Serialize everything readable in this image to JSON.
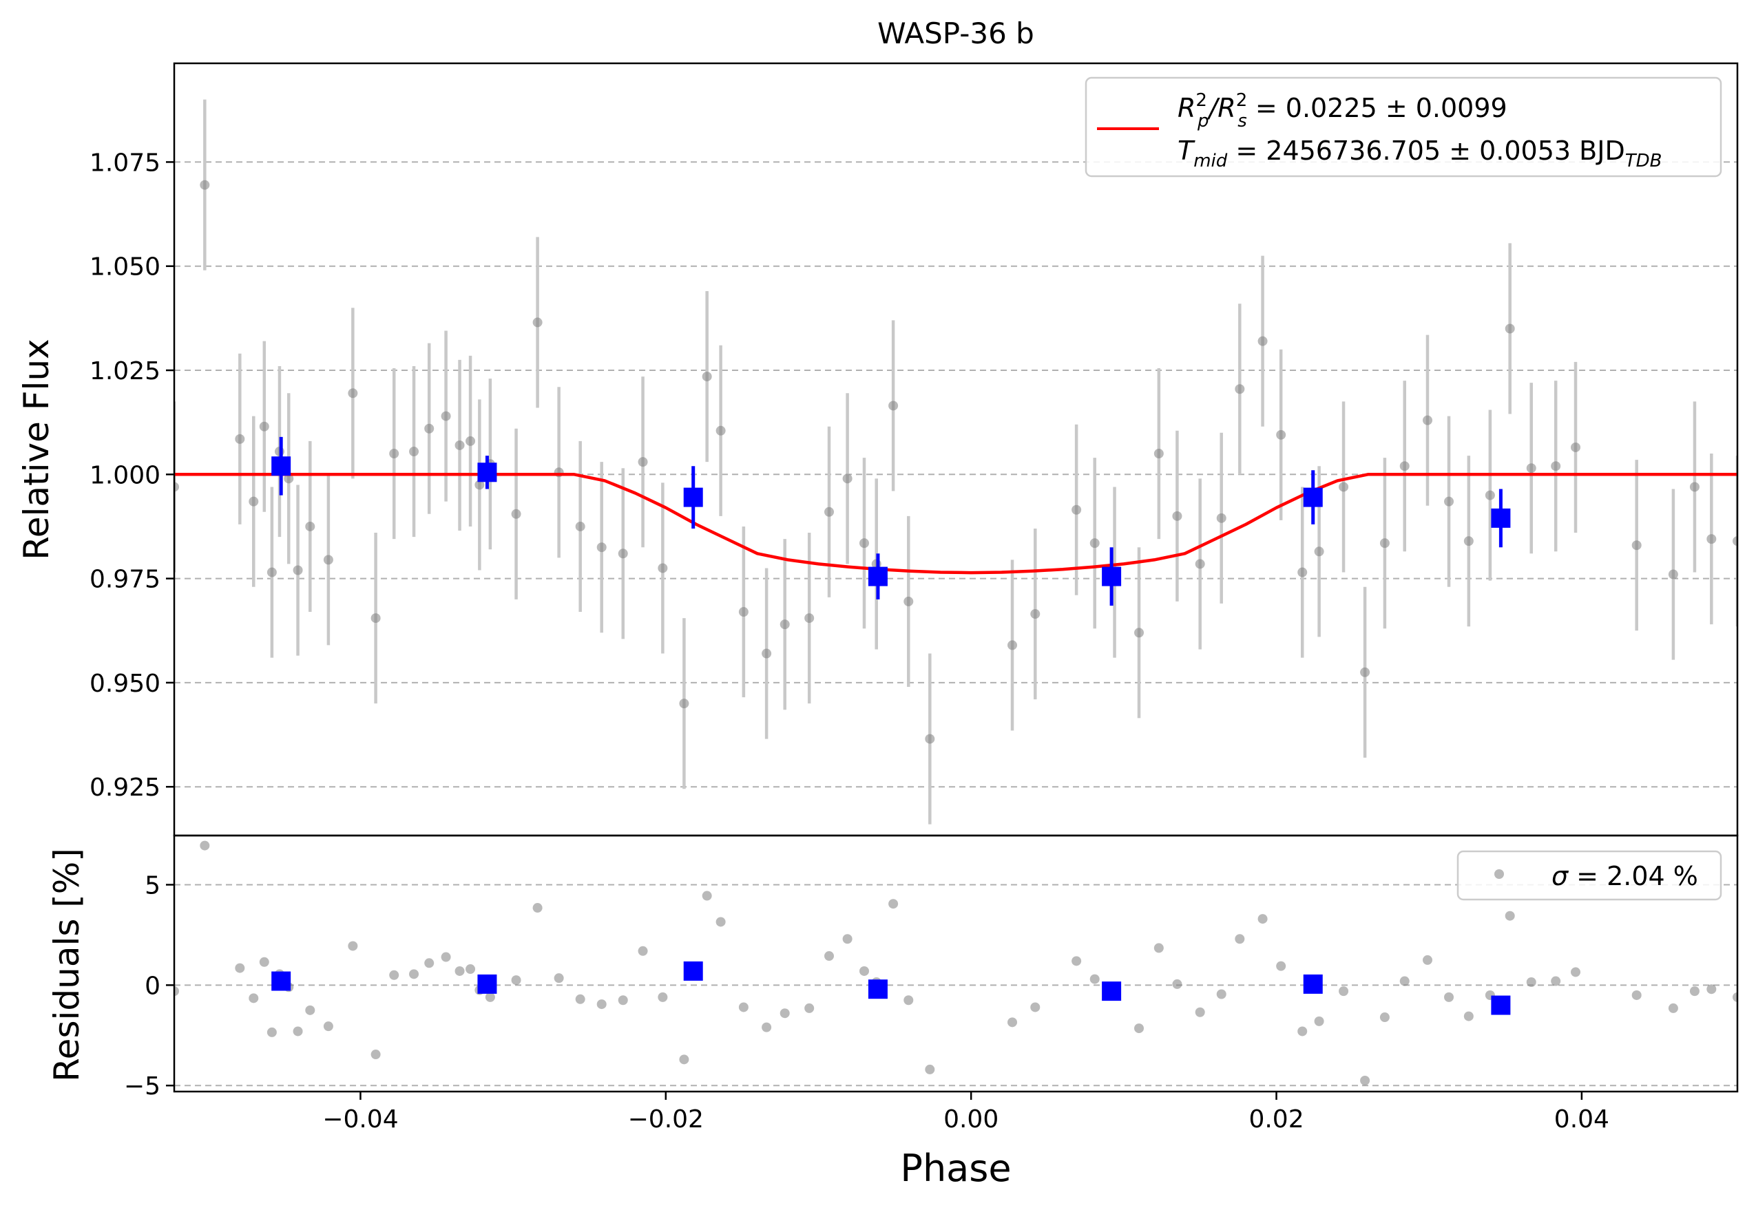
{
  "colors": {
    "model": "#ff0000",
    "binned": "#0000ff",
    "raw": "#808080",
    "errorbar": "#c8c8c8",
    "grid": "#b0b0b0",
    "axis": "#000000"
  },
  "chart_data": [
    {
      "type": "scatter",
      "panel": "lightcurve",
      "title": "WASP-36 b",
      "xlabel": "",
      "ylabel": "Relative Flux",
      "xlim": [
        -0.0522,
        0.0502
      ],
      "ylim": [
        0.9133,
        1.0987
      ],
      "yticks": [
        0.925,
        0.95,
        0.975,
        1.0,
        1.025,
        1.05,
        1.075
      ],
      "ytick_labels": [
        "0.925",
        "0.950",
        "0.975",
        "1.000",
        "1.025",
        "1.050",
        "1.075"
      ],
      "grid": "horizontal dashed",
      "legend": {
        "placement": "top-right",
        "line1_a": "R",
        "line1_sup1": "2",
        "line1_sub1": "p",
        "line1_b": "/R",
        "line1_sup2": "2",
        "line1_sub2": "s",
        "line1_c": " = 0.0225 ± 0.0099",
        "line2_a": "T",
        "line2_sub": "mid",
        "line2_b": " = 2456736.705 ± 0.0053 BJD",
        "line2_sub2": "TDB"
      },
      "raw_points": {
        "err": 0.0205,
        "x": [
          -0.0522,
          -0.0502,
          -0.0479,
          -0.047,
          -0.0463,
          -0.0458,
          -0.0453,
          -0.0447,
          -0.0441,
          -0.0433,
          -0.0421,
          -0.0405,
          -0.039,
          -0.0378,
          -0.0365,
          -0.0355,
          -0.0344,
          -0.0335,
          -0.0328,
          -0.0322,
          -0.0315,
          -0.0298,
          -0.0284,
          -0.027,
          -0.0256,
          -0.0242,
          -0.0228,
          -0.0215,
          -0.0202,
          -0.0188,
          -0.0173,
          -0.0164,
          -0.0149,
          -0.0134,
          -0.0122,
          -0.0106,
          -0.0093,
          -0.0081,
          -0.007,
          -0.0062,
          -0.0051,
          -0.0041,
          -0.0027,
          0.0027,
          0.0042,
          0.0069,
          0.0081,
          0.0094,
          0.011,
          0.0123,
          0.0135,
          0.015,
          0.0164,
          0.0176,
          0.0191,
          0.0203,
          0.0217,
          0.0228,
          0.0244,
          0.0258,
          0.0271,
          0.0284,
          0.0299,
          0.0313,
          0.0326,
          0.034,
          0.0353,
          0.0367,
          0.0383,
          0.0396,
          0.0436,
          0.046,
          0.0474,
          0.0485,
          0.0502
        ],
        "y": [
          0.997,
          1.0695,
          1.0085,
          0.9935,
          1.0115,
          0.9765,
          1.0055,
          0.999,
          0.977,
          0.9875,
          0.9795,
          1.0195,
          0.9655,
          1.005,
          1.0055,
          1.011,
          1.014,
          1.007,
          1.008,
          0.9975,
          1.0025,
          0.9905,
          1.0365,
          1.0005,
          0.9875,
          0.9825,
          0.981,
          1.003,
          0.9775,
          0.945,
          1.0235,
          1.0105,
          0.967,
          0.957,
          0.964,
          0.9655,
          0.991,
          0.999,
          0.9835,
          0.9785,
          1.0165,
          0.9695,
          0.9365,
          0.959,
          0.9665,
          0.9915,
          0.9835,
          0.9765,
          0.962,
          1.005,
          0.99,
          0.9785,
          0.9895,
          1.0205,
          1.032,
          1.0095,
          0.9765,
          0.9815,
          0.997,
          0.9525,
          0.9835,
          1.002,
          1.013,
          0.9935,
          0.984,
          0.995,
          1.035,
          1.0015,
          1.002,
          1.0065,
          0.983,
          0.976,
          0.997,
          0.9845,
          0.984
        ]
      },
      "binned_points": {
        "x": [
          -0.0452,
          -0.0317,
          -0.0182,
          -0.0061,
          0.0092,
          0.0224,
          0.0347
        ],
        "y": [
          1.002,
          1.0005,
          0.9945,
          0.9755,
          0.9755,
          0.9945,
          0.9895
        ],
        "err": [
          0.007,
          0.004,
          0.0075,
          0.0055,
          0.007,
          0.0065,
          0.007
        ]
      },
      "model": {
        "x": [
          -0.0522,
          -0.026,
          -0.024,
          -0.022,
          -0.02,
          -0.018,
          -0.016,
          -0.014,
          -0.012,
          -0.01,
          -0.008,
          -0.006,
          -0.004,
          -0.002,
          0.0,
          0.002,
          0.004,
          0.006,
          0.008,
          0.01,
          0.012,
          0.014,
          0.016,
          0.018,
          0.02,
          0.022,
          0.024,
          0.026,
          0.0502
        ],
        "y": [
          1.0,
          1.0,
          0.9985,
          0.9955,
          0.992,
          0.988,
          0.9845,
          0.981,
          0.9795,
          0.9785,
          0.9778,
          0.9772,
          0.9768,
          0.9765,
          0.9764,
          0.9765,
          0.9768,
          0.9772,
          0.9778,
          0.9785,
          0.9795,
          0.981,
          0.9845,
          0.988,
          0.992,
          0.9955,
          0.9985,
          1.0,
          1.0
        ]
      }
    },
    {
      "type": "scatter",
      "panel": "residuals",
      "xlabel": "Phase",
      "ylabel": "Residuals [%]",
      "xlim": [
        -0.0522,
        0.0502
      ],
      "ylim": [
        -5.3,
        7.45
      ],
      "yticks": [
        -5,
        0,
        5
      ],
      "ytick_labels": [
        "−5",
        "0",
        "5"
      ],
      "xticks": [
        -0.04,
        -0.02,
        0.0,
        0.02,
        0.04
      ],
      "xtick_labels": [
        "−0.04",
        "−0.02",
        "0.00",
        "0.02",
        "0.04"
      ],
      "grid": "horizontal dashed",
      "legend": {
        "placement": "top-right",
        "sigma_symbol": "σ",
        "label": " = 2.04 %"
      },
      "raw_points": {
        "x": [
          -0.0522,
          -0.0502,
          -0.0479,
          -0.047,
          -0.0463,
          -0.0458,
          -0.0453,
          -0.0447,
          -0.0441,
          -0.0433,
          -0.0421,
          -0.0405,
          -0.039,
          -0.0378,
          -0.0365,
          -0.0355,
          -0.0344,
          -0.0335,
          -0.0328,
          -0.0322,
          -0.0315,
          -0.0298,
          -0.0284,
          -0.027,
          -0.0256,
          -0.0242,
          -0.0228,
          -0.0215,
          -0.0202,
          -0.0188,
          -0.0173,
          -0.0164,
          -0.0149,
          -0.0134,
          -0.0122,
          -0.0106,
          -0.0093,
          -0.0081,
          -0.007,
          -0.0062,
          -0.0051,
          -0.0041,
          -0.0027,
          0.0027,
          0.0042,
          0.0069,
          0.0081,
          0.0094,
          0.011,
          0.0123,
          0.0135,
          0.015,
          0.0164,
          0.0176,
          0.0191,
          0.0203,
          0.0217,
          0.0228,
          0.0244,
          0.0258,
          0.0271,
          0.0284,
          0.0299,
          0.0313,
          0.0326,
          0.034,
          0.0353,
          0.0367,
          0.0383,
          0.0396,
          0.0436,
          0.046,
          0.0474,
          0.0485,
          0.0502
        ],
        "y": [
          -0.3,
          6.95,
          0.85,
          -0.65,
          1.15,
          -2.35,
          0.55,
          -0.1,
          -2.3,
          -1.25,
          -2.05,
          1.95,
          -3.45,
          0.5,
          0.55,
          1.1,
          1.4,
          0.7,
          0.8,
          -0.25,
          -0.6,
          0.25,
          3.85,
          0.35,
          -0.7,
          -0.95,
          -0.75,
          1.7,
          -0.6,
          -3.7,
          4.45,
          3.15,
          -1.1,
          -2.1,
          -1.4,
          -1.15,
          1.45,
          2.3,
          0.7,
          0.15,
          4.05,
          -0.75,
          -4.2,
          -1.85,
          -1.1,
          1.2,
          0.3,
          -0.45,
          -2.15,
          1.85,
          0.05,
          -1.35,
          -0.45,
          2.3,
          3.3,
          0.95,
          -2.3,
          -1.8,
          -0.3,
          -4.75,
          -1.6,
          0.2,
          1.25,
          -0.6,
          -1.55,
          -0.5,
          3.45,
          0.15,
          0.2,
          0.65,
          -0.5,
          -1.15,
          -0.3,
          -0.2,
          -0.6
        ]
      },
      "binned_points": {
        "x": [
          -0.0452,
          -0.0317,
          -0.0182,
          -0.0061,
          0.0092,
          0.0224,
          0.0347
        ],
        "y": [
          0.2,
          0.05,
          0.7,
          -0.2,
          -0.3,
          0.05,
          -1.0
        ]
      }
    }
  ]
}
